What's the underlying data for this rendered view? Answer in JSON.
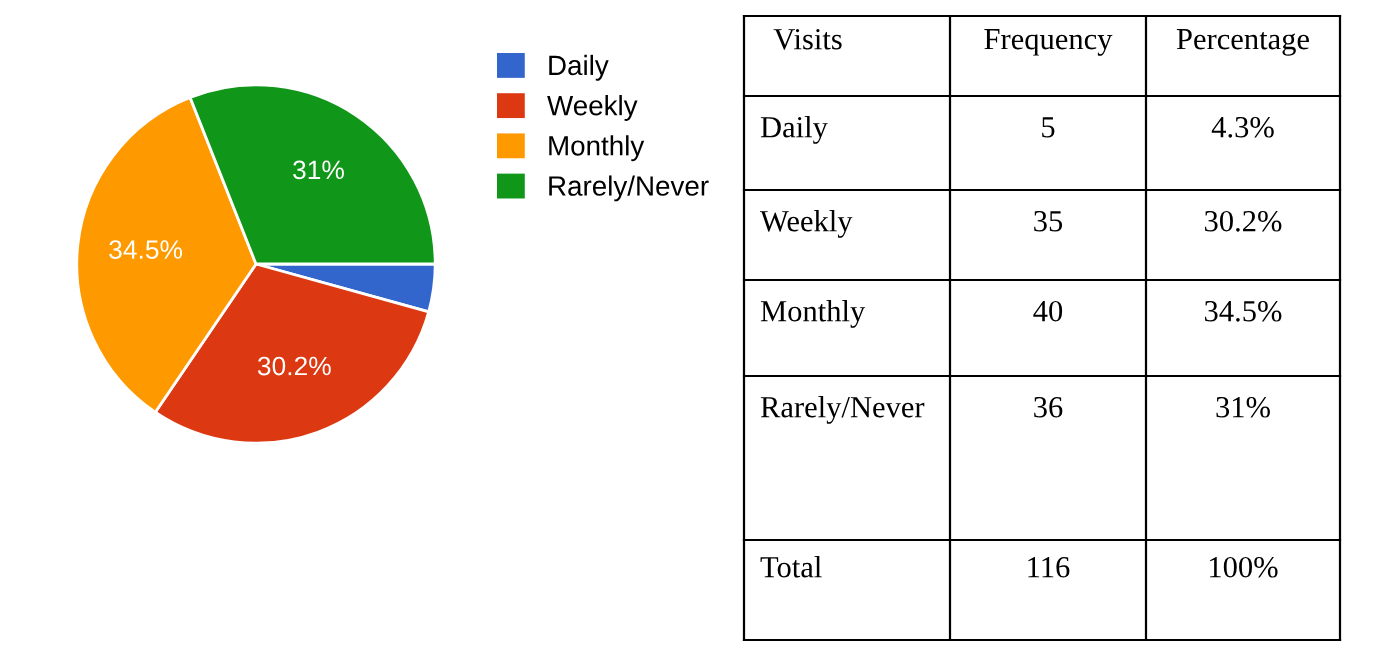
{
  "chart_data": {
    "type": "pie",
    "categories": [
      "Daily",
      "Weekly",
      "Monthly",
      "Rarely/Never"
    ],
    "values": [
      4.3,
      30.2,
      34.5,
      31
    ],
    "colors": [
      "#3366cc",
      "#dc3912",
      "#ff9900",
      "#109618"
    ],
    "value_labels": [
      null,
      "30.2%",
      "34.5%",
      "31%"
    ],
    "legend": "right",
    "annotations": [
      "Visits",
      "Frequency",
      "Percentage",
      "5",
      "4.3%",
      "35",
      "30.2%",
      "40",
      "34.5%",
      "36",
      "31%",
      "Total",
      "116",
      "100%"
    ]
  }
}
